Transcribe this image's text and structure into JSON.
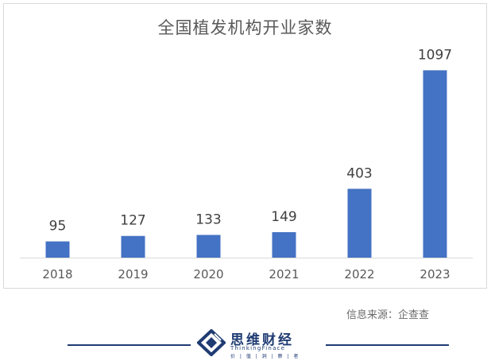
{
  "chart_data": {
    "type": "bar",
    "title": "全国植发机构开业家数",
    "categories": [
      "2018",
      "2019",
      "2020",
      "2021",
      "2022",
      "2023"
    ],
    "values": [
      95,
      127,
      133,
      149,
      403,
      1097
    ],
    "data_labels": [
      "95",
      "127",
      "133",
      "149",
      "403",
      "1097"
    ],
    "ylim": [
      0,
      1150
    ],
    "grid": false,
    "legend": "none",
    "bar_color": "#4472c4"
  },
  "source": "信息来源：企查查",
  "brand": {
    "name": "思维财经",
    "english": "ThinkingFinace",
    "tagline": "价 | 值 | 洞 | 察 | 者",
    "color": "#1f3b73"
  }
}
